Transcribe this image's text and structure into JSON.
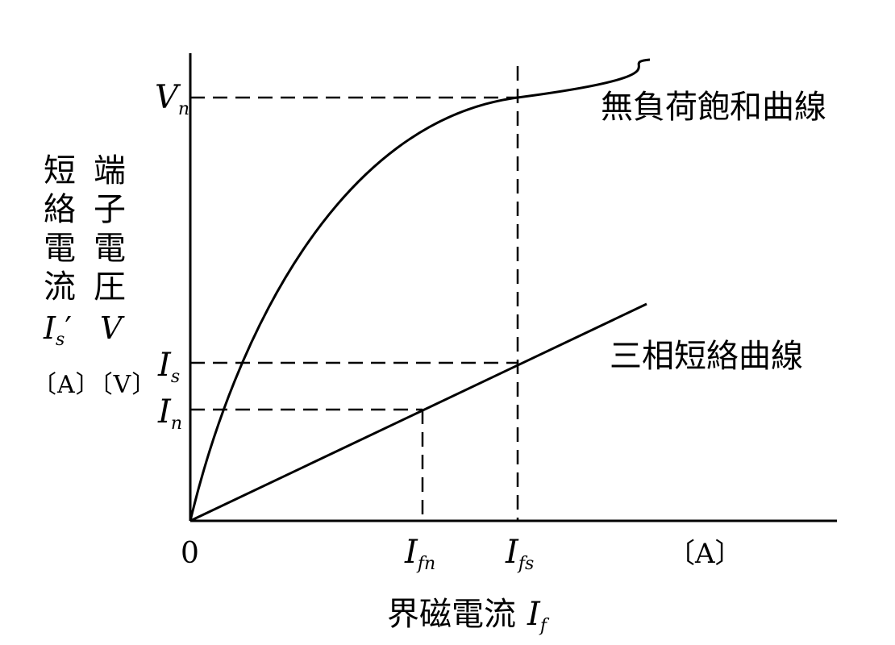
{
  "origin_label": "0",
  "x_unit": "〔A〕",
  "x_axis_title": "界磁電流",
  "x_axis_symbol": "I",
  "x_axis_symbol_sub": "f",
  "y_axis_labels": {
    "left_chars": [
      "短",
      "絡",
      "電",
      "流"
    ],
    "right_chars": [
      "端",
      "子",
      "電",
      "圧"
    ],
    "left_symbol": "I",
    "left_symbol_sub": "s",
    "left_symbol_prime": "′",
    "right_symbol": "V",
    "units": "〔A〕〔V〕"
  },
  "ticks_y": {
    "Vn": {
      "main": "V",
      "sub": "n"
    },
    "Is": {
      "main": "I",
      "sub": "s"
    },
    "In": {
      "main": "I",
      "sub": "n"
    }
  },
  "ticks_x": {
    "Ifn": {
      "main": "I",
      "sub": "fn"
    },
    "Ifs": {
      "main": "I",
      "sub": "fs"
    }
  },
  "curves": {
    "no_load": "無負荷飽和曲線",
    "short_circuit": "三相短絡曲線"
  }
}
